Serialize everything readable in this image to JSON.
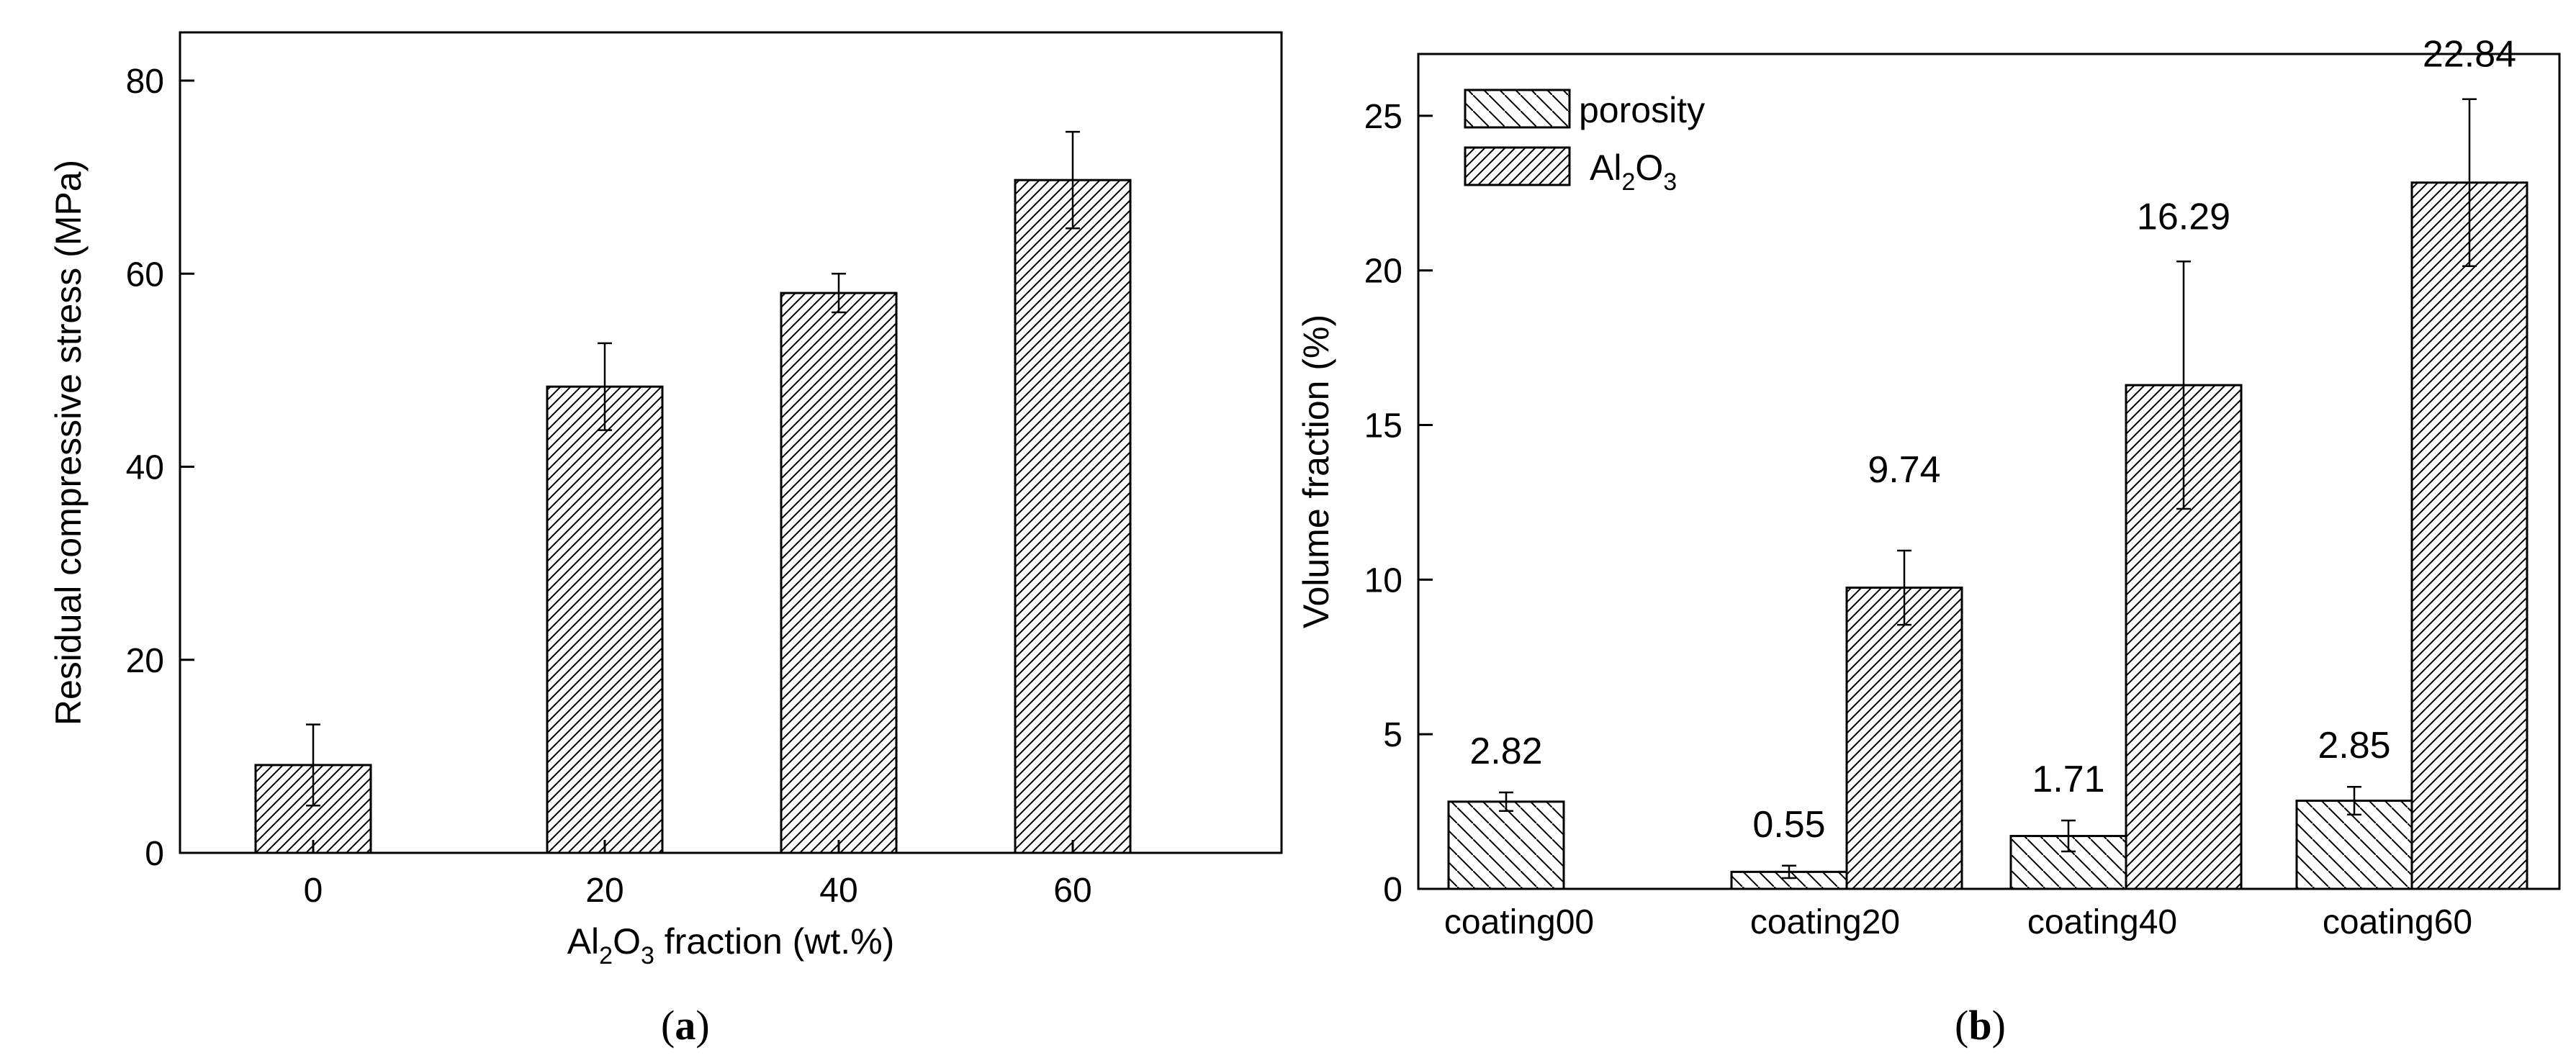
{
  "chart_data": [
    {
      "type": "bar",
      "panel_label": "a",
      "xlabel": {
        "pre": "Al",
        "sub1": "2",
        "mid": "O",
        "sub2": "3",
        "post": " fraction (wt.%)"
      },
      "ylabel": "Residual compressive stress (MPa)",
      "categories": [
        "0",
        "20",
        "40",
        "60"
      ],
      "values": [
        9.1,
        48.3,
        58.0,
        69.7
      ],
      "errors": [
        4.2,
        4.5,
        2.0,
        5.0
      ],
      "ylim": [
        0,
        85
      ],
      "yticks": [
        0,
        20,
        40,
        60,
        80
      ],
      "pattern": "hatch-forward"
    },
    {
      "type": "bar",
      "panel_label": "b",
      "ylabel": "Volume fraction (%)",
      "categories": [
        "coating00",
        "coating20",
        "coating40",
        "coating60"
      ],
      "series": [
        {
          "name": "porosity",
          "values": [
            2.82,
            0.55,
            1.71,
            2.85
          ],
          "errors": [
            0.3,
            0.2,
            0.5,
            0.45
          ],
          "labels": [
            "2.82",
            "0.55",
            "1.71",
            "2.85"
          ],
          "pattern": "hatch-back"
        },
        {
          "name": {
            "pre": "Al",
            "sub1": "2",
            "mid": "O",
            "sub2": "3"
          },
          "values": [
            null,
            9.74,
            16.29,
            22.84
          ],
          "errors": [
            null,
            1.2,
            4.0,
            2.7
          ],
          "labels": [
            "",
            "9.74",
            "16.29",
            "22.84"
          ],
          "pattern": "hatch-forward"
        }
      ],
      "ylim": [
        0,
        27
      ],
      "yticks": [
        0,
        5,
        10,
        15,
        20,
        25
      ],
      "legend_position": "top-left"
    }
  ]
}
